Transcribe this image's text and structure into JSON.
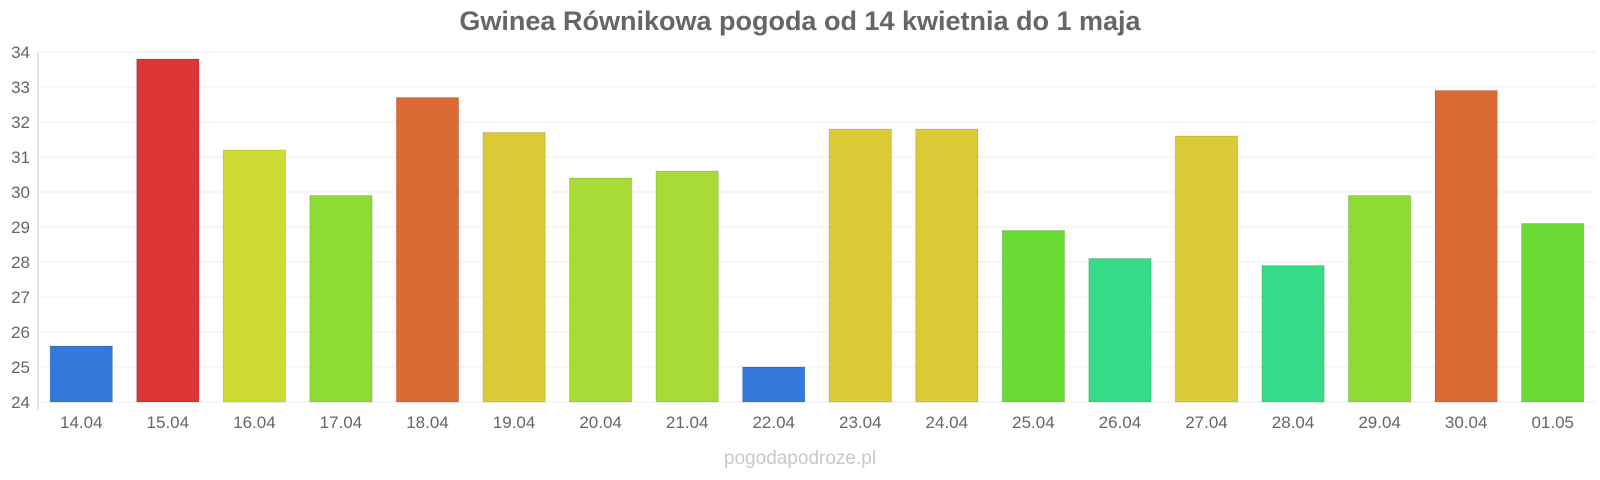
{
  "chart_data": {
    "type": "bar",
    "title": "Gwinea Równikowa pogoda od 14 kwietnia do 1 maja",
    "xlabel": "",
    "ylabel": "",
    "ylim": [
      24,
      34
    ],
    "yticks": [
      24,
      25,
      26,
      27,
      28,
      29,
      30,
      31,
      32,
      33,
      34
    ],
    "grid": true,
    "categories": [
      "14.04",
      "15.04",
      "16.04",
      "17.04",
      "18.04",
      "19.04",
      "20.04",
      "21.04",
      "22.04",
      "23.04",
      "24.04",
      "25.04",
      "26.04",
      "27.04",
      "28.04",
      "29.04",
      "30.04",
      "01.05"
    ],
    "values": [
      25.6,
      33.8,
      31.2,
      29.9,
      32.7,
      31.7,
      30.4,
      30.6,
      25.0,
      31.8,
      31.8,
      28.9,
      28.1,
      31.6,
      27.9,
      29.9,
      32.9,
      29.1
    ],
    "colors": [
      "#3578db",
      "#db3535",
      "#cfdb35",
      "#8edb35",
      "#db6b35",
      "#dbc935",
      "#a8db35",
      "#a8db35",
      "#3578db",
      "#dbc935",
      "#dbc935",
      "#6adb35",
      "#35db87",
      "#dbc935",
      "#35db87",
      "#8edb35",
      "#db6b35",
      "#6adb35"
    ]
  },
  "watermark": "pogodapodroze.pl"
}
